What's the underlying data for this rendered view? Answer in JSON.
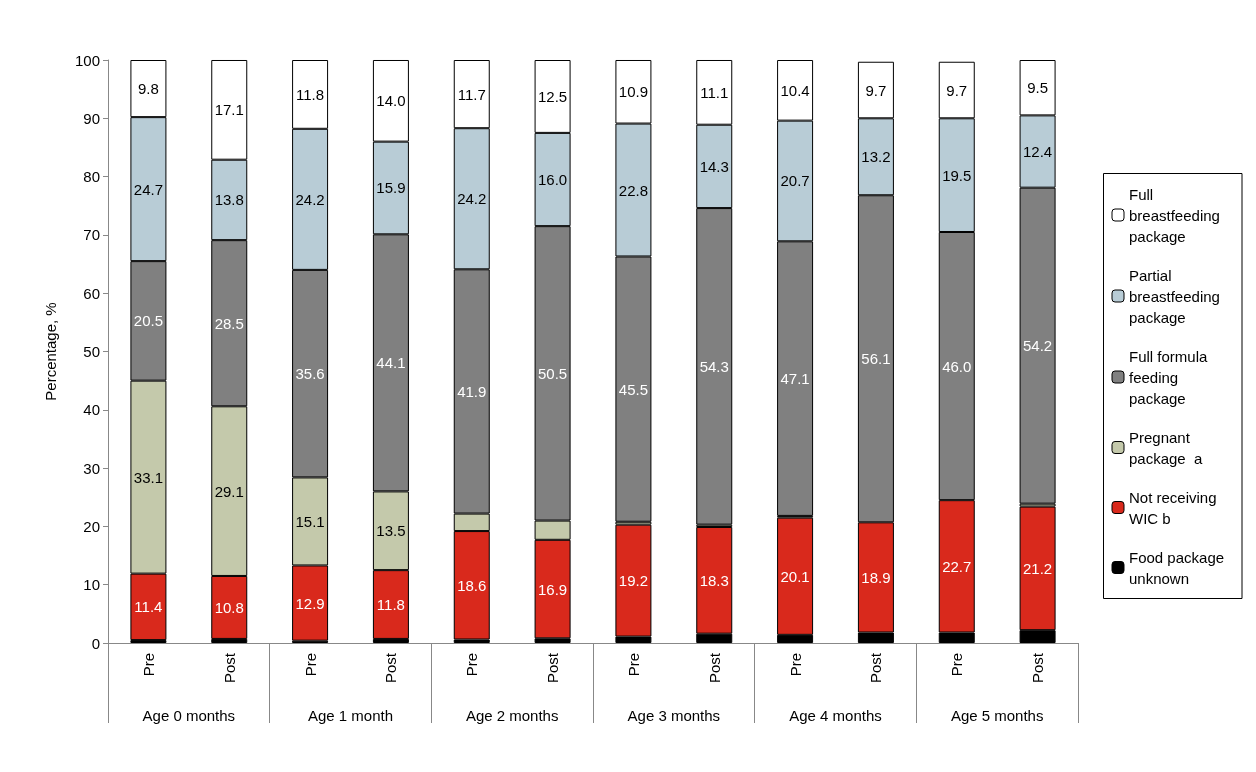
{
  "chart_data": {
    "type": "bar",
    "stacked": true,
    "ylabel": "Percentage, %",
    "ylim": [
      0,
      100
    ],
    "yticks": [
      0,
      10,
      20,
      30,
      40,
      50,
      60,
      70,
      80,
      90,
      100
    ],
    "grid": false,
    "legend": "right",
    "categories": [
      "Pre",
      "Post",
      "Pre",
      "Post",
      "Pre",
      "Post",
      "Pre",
      "Post",
      "Pre",
      "Post",
      "Pre",
      "Post"
    ],
    "annotations": [
      "Age 0 months",
      "Age 1 month",
      "Age 2 months",
      "Age 3 months",
      "Age 4 months",
      "Age 5 months"
    ],
    "series": [
      {
        "name": "Food package unknown",
        "color": "#000000",
        "values": [
          0.5,
          0.7,
          0.4,
          0.7,
          0.6,
          0.8,
          1.1,
          1.6,
          1.4,
          1.8,
          1.8,
          2.2
        ],
        "value_labels": [
          null,
          null,
          null,
          null,
          null,
          null,
          null,
          null,
          null,
          null,
          null,
          null
        ]
      },
      {
        "name": "Not receiving WIC b",
        "color": "#d9291c",
        "values": [
          11.4,
          10.8,
          12.9,
          11.8,
          18.6,
          16.9,
          19.2,
          18.3,
          20.1,
          18.9,
          22.7,
          21.2
        ],
        "value_labels": [
          "11.4",
          "10.8",
          "12.9",
          "11.8",
          "18.6",
          "16.9",
          "19.2",
          "18.3",
          "20.1",
          "18.9",
          "22.7",
          "21.2"
        ]
      },
      {
        "name": "Pregnant package  a",
        "color": "#c4c9ab",
        "values": [
          33.1,
          29.1,
          15.1,
          13.5,
          3.0,
          3.3,
          0.5,
          0.4,
          0.3,
          null,
          null,
          0.5
        ],
        "value_labels": [
          "33.1",
          "29.1",
          "15.1",
          "13.5",
          null,
          null,
          null,
          null,
          null,
          null,
          null,
          null
        ]
      },
      {
        "name": "Full formula feeding package",
        "color": "#808080",
        "values": [
          20.5,
          28.5,
          35.6,
          44.1,
          41.9,
          50.5,
          45.5,
          54.3,
          47.1,
          56.1,
          46.0,
          54.2
        ],
        "value_labels": [
          "20.5",
          "28.5",
          "35.6",
          "44.1",
          "41.9",
          "50.5",
          "45.5",
          "54.3",
          "47.1",
          "56.1",
          "46.0",
          "54.2"
        ]
      },
      {
        "name": "Partial breastfeeding package",
        "color": "#b8ccd6",
        "values": [
          24.7,
          13.8,
          24.2,
          15.9,
          24.2,
          16.0,
          22.8,
          14.3,
          20.7,
          13.2,
          19.5,
          12.4
        ],
        "value_labels": [
          "24.7",
          "13.8",
          "24.2",
          "15.9",
          "24.2",
          "16.0",
          "22.8",
          "14.3",
          "20.7",
          "13.2",
          "19.5",
          "12.4"
        ]
      },
      {
        "name": "Full breastfeeding package",
        "color": "#ffffff",
        "values": [
          9.8,
          17.1,
          11.8,
          14.0,
          11.7,
          12.5,
          10.9,
          11.1,
          10.4,
          9.7,
          9.7,
          9.5
        ],
        "value_labels": [
          "9.8",
          "17.1",
          "11.8",
          "14.0",
          "11.7",
          "12.5",
          "10.9",
          "11.1",
          "10.4",
          "9.7",
          "9.7",
          "9.5"
        ]
      }
    ]
  }
}
